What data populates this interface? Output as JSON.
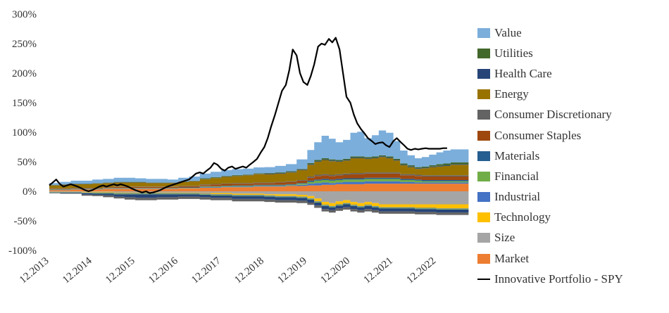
{
  "chart_data": {
    "type": "area",
    "title": "",
    "xlabel": "",
    "ylabel": "",
    "ylim": [
      -100,
      300
    ],
    "y_ticks": [
      "300%",
      "250%",
      "200%",
      "150%",
      "100%",
      "50%",
      "0%",
      "-50%",
      "-100%"
    ],
    "x_ticks": [
      "12.2013",
      "12.2014",
      "12.2015",
      "12.2016",
      "12.2017",
      "12.2018",
      "12.2019",
      "12.2020",
      "12.2021",
      "12.2022"
    ],
    "x": [
      2013.92,
      2014.17,
      2014.42,
      2014.67,
      2014.92,
      2015.17,
      2015.42,
      2015.67,
      2015.92,
      2016.17,
      2016.42,
      2016.67,
      2016.92,
      2017.17,
      2017.42,
      2017.67,
      2017.92,
      2018.17,
      2018.42,
      2018.67,
      2018.92,
      2019.17,
      2019.42,
      2019.67,
      2019.92,
      2020.08,
      2020.25,
      2020.42,
      2020.58,
      2020.75,
      2020.92,
      2021.08,
      2021.25,
      2021.42,
      2021.58,
      2021.75,
      2021.92,
      2022.08,
      2022.25,
      2022.42,
      2022.58,
      2022.75,
      2022.92,
      2023.08,
      2023.25,
      2023.42
    ],
    "grid": false,
    "legend_position": "right",
    "positive_series": [
      {
        "name": "Market",
        "color": "#ED7D31",
        "values": [
          2,
          2,
          3,
          3,
          3,
          4,
          4,
          4,
          4,
          4,
          4,
          4,
          5,
          5,
          6,
          6,
          7,
          7,
          7,
          8,
          8,
          8,
          9,
          9,
          10,
          10,
          11,
          11,
          12,
          12,
          12,
          12,
          13,
          13,
          13,
          13,
          13,
          13,
          13,
          13,
          13,
          13,
          13,
          13,
          13,
          13
        ]
      },
      {
        "name": "Industrial",
        "color": "#4472C4",
        "values": [
          0.5,
          0.5,
          0.5,
          0.5,
          0.5,
          0.5,
          0.5,
          0.5,
          0.5,
          0.5,
          0.5,
          0.5,
          0.5,
          0.5,
          1,
          1,
          1,
          1,
          1,
          1,
          1,
          1,
          1,
          2,
          3,
          4,
          4,
          3,
          3,
          4,
          4,
          4,
          4,
          4,
          4,
          4,
          4,
          3,
          3,
          2,
          2,
          2,
          2,
          2,
          2,
          2
        ]
      },
      {
        "name": "Financial",
        "color": "#70AD47",
        "values": [
          0.5,
          0.5,
          0.5,
          0.5,
          0.5,
          0.5,
          0.5,
          0.5,
          0.5,
          0.5,
          0.5,
          0.5,
          0.5,
          0.5,
          1,
          1,
          1,
          1,
          1,
          1,
          1,
          1,
          1,
          2,
          3,
          4,
          4,
          4,
          4,
          4,
          4,
          4,
          4,
          4,
          4,
          4,
          4,
          3,
          3,
          3,
          2,
          2,
          2,
          2,
          2,
          2
        ]
      },
      {
        "name": "Materials",
        "color": "#255E91",
        "values": [
          0.5,
          0.5,
          0.5,
          0.5,
          0.5,
          0.5,
          0.5,
          0.5,
          0.5,
          0.5,
          0.5,
          0.5,
          0.5,
          0.5,
          0.5,
          0.5,
          0.5,
          1,
          1,
          1,
          1,
          1,
          1,
          1,
          2,
          2,
          2,
          2,
          2,
          2,
          2,
          2,
          2,
          2,
          2,
          2,
          2,
          2,
          2,
          2,
          2,
          2,
          2,
          2,
          2,
          2
        ]
      },
      {
        "name": "Consumer Staples",
        "color": "#9E480E",
        "values": [
          1,
          1,
          1,
          1,
          1,
          1,
          2,
          2,
          2,
          2,
          2,
          2,
          2,
          2,
          2,
          3,
          3,
          3,
          3,
          3,
          3,
          4,
          4,
          4,
          5,
          6,
          6,
          6,
          6,
          6,
          7,
          7,
          7,
          7,
          7,
          7,
          7,
          6,
          6,
          6,
          6,
          6,
          6,
          6,
          6,
          6
        ]
      },
      {
        "name": "Consumer Discretionary",
        "color": "#636363",
        "values": [
          0.5,
          0.5,
          0.5,
          0.5,
          0.5,
          0.5,
          0.5,
          0.5,
          0.5,
          0.5,
          0.5,
          0.5,
          0.5,
          0.5,
          1,
          1,
          1,
          1,
          1,
          1,
          1,
          1,
          1,
          1,
          2,
          2,
          2,
          2,
          2,
          2,
          2,
          2,
          2,
          2,
          2,
          2,
          2,
          2,
          2,
          2,
          2,
          2,
          2,
          2,
          2,
          2
        ]
      },
      {
        "name": "Energy",
        "color": "#997300",
        "values": [
          5,
          6,
          6,
          6,
          7,
          7,
          7,
          7,
          7,
          6,
          6,
          6,
          7,
          8,
          9,
          10,
          11,
          12,
          13,
          14,
          14,
          14,
          15,
          17,
          20,
          22,
          24,
          23,
          21,
          22,
          25,
          25,
          23,
          24,
          26,
          24,
          20,
          15,
          12,
          10,
          12,
          14,
          15,
          16,
          18,
          18
        ]
      },
      {
        "name": "Health Care",
        "color": "#264478",
        "values": [
          0.5,
          0.5,
          0.5,
          0.5,
          0.5,
          0.5,
          0.5,
          0.5,
          0.5,
          0.5,
          0.5,
          0.5,
          0.5,
          0.5,
          0.5,
          0.5,
          0.5,
          0.5,
          0.5,
          0.5,
          1,
          1,
          1,
          1,
          1,
          1,
          1,
          1,
          1,
          1,
          1,
          1,
          1,
          1,
          1,
          1,
          1,
          1,
          1,
          1,
          1,
          1,
          1,
          1,
          1,
          1
        ]
      },
      {
        "name": "Utilities",
        "color": "#43682B",
        "values": [
          0.5,
          0.5,
          0.5,
          0.5,
          0.5,
          0.5,
          0.5,
          0.5,
          0.5,
          0.5,
          0.5,
          0.5,
          0.5,
          0.5,
          1,
          1,
          1,
          1,
          1,
          1,
          1,
          1,
          1,
          1,
          2,
          2,
          2,
          2,
          2,
          2,
          2,
          2,
          2,
          2,
          2,
          2,
          2,
          2,
          2,
          2,
          2,
          2,
          3,
          3,
          3,
          3
        ]
      },
      {
        "name": "Value",
        "color": "#7BAEDB",
        "values": [
          3,
          4,
          5,
          5,
          6,
          6,
          7,
          7,
          6,
          6,
          6,
          5,
          6,
          7,
          8,
          9,
          10,
          10,
          10,
          10,
          10,
          11,
          12,
          16,
          22,
          30,
          38,
          35,
          30,
          32,
          40,
          42,
          32,
          36,
          42,
          40,
          30,
          22,
          17,
          15,
          16,
          18,
          20,
          22,
          22,
          22
        ]
      }
    ],
    "negative_series": [
      {
        "name": "Size",
        "color": "#A5A5A5",
        "values": [
          -0.5,
          -0.5,
          -0.5,
          -1,
          -1,
          -1,
          -2,
          -2,
          -2,
          -2,
          -2,
          -2,
          -2,
          -2,
          -3,
          -3,
          -3,
          -4,
          -4,
          -4,
          -5,
          -5,
          -5,
          -6,
          -8,
          -12,
          -18,
          -20,
          -17,
          -15,
          -18,
          -20,
          -18,
          -20,
          -22,
          -22,
          -22,
          -22,
          -22,
          -22,
          -22,
          -22,
          -22,
          -22,
          -22,
          -22
        ]
      },
      {
        "name": "Technology",
        "color": "#FFC000",
        "values": [
          -0.5,
          -0.5,
          -0.5,
          -1,
          -1,
          -1,
          -1,
          -1,
          -1,
          -1,
          -1,
          -1,
          -1,
          -1,
          -1,
          -2,
          -2,
          -2,
          -2,
          -2,
          -2,
          -3,
          -3,
          -3,
          -4,
          -5,
          -5,
          -5,
          -5,
          -5,
          -5,
          -5,
          -5,
          -5,
          -5,
          -5,
          -5,
          -5,
          -5,
          -6,
          -6,
          -6,
          -7,
          -7,
          -7,
          -7
        ]
      },
      {
        "name": "Industrial",
        "color": "#4472C4",
        "values": [
          -0.5,
          -0.5,
          -0.5,
          -1,
          -1,
          -1,
          -1,
          -1,
          -1,
          -1,
          -1,
          -1,
          -1,
          -1,
          -1,
          -1,
          -1,
          -1,
          -1,
          -1,
          -1,
          -1,
          -1,
          -1,
          -1,
          -1,
          -1,
          -1,
          -1,
          -1,
          -1,
          -1,
          -1,
          -1,
          -1,
          -1,
          -1,
          -1,
          -1,
          -1,
          -1,
          -1,
          -1,
          -1,
          -1,
          -1
        ]
      },
      {
        "name": "Financial",
        "color": "#70AD47",
        "values": [
          -0.5,
          -0.5,
          -0.5,
          -0.5,
          -1,
          -1,
          -1,
          -1,
          -1,
          -1,
          -1,
          -1,
          -1,
          -1,
          -1,
          -1,
          -1,
          -1,
          -1,
          -1,
          -1,
          -1,
          -1,
          -1,
          -1,
          -1,
          -1,
          -1,
          -1,
          -1,
          -1,
          -1,
          -1,
          -1,
          -1,
          -1,
          -1,
          -1,
          -1,
          -1,
          -1,
          -1,
          -1,
          -1,
          -1,
          -1
        ]
      },
      {
        "name": "Health Care",
        "color": "#264478",
        "values": [
          -0.5,
          -1,
          -1,
          -2,
          -2,
          -3,
          -4,
          -5,
          -6,
          -6,
          -5,
          -5,
          -4,
          -4,
          -4,
          -4,
          -4,
          -5,
          -5,
          -5,
          -5,
          -5,
          -5,
          -5,
          -5,
          -5,
          -5,
          -5,
          -5,
          -5,
          -5,
          -5,
          -5,
          -5,
          -5,
          -5,
          -5,
          -5,
          -5,
          -5,
          -5,
          -5,
          -5,
          -5,
          -5,
          -5
        ]
      },
      {
        "name": "Consumer Discretionary",
        "color": "#636363",
        "values": [
          -1,
          -1,
          -1,
          -2,
          -2,
          -3,
          -3,
          -4,
          -4,
          -4,
          -4,
          -4,
          -4,
          -4,
          -4,
          -4,
          -4,
          -4,
          -4,
          -4,
          -4,
          -4,
          -4,
          -4,
          -4,
          -4,
          -4,
          -4,
          -4,
          -4,
          -4,
          -4,
          -4,
          -4,
          -4,
          -4,
          -4,
          -4,
          -4,
          -4,
          -4,
          -4,
          -4,
          -4,
          -4,
          -4
        ]
      }
    ],
    "line_series": {
      "name": "Innovative Portfolio - SPY",
      "color": "#000000",
      "x": [
        2013.92,
        2014.0,
        2014.08,
        2014.17,
        2014.25,
        2014.33,
        2014.42,
        2014.5,
        2014.58,
        2014.67,
        2014.75,
        2014.83,
        2014.92,
        2015.0,
        2015.08,
        2015.17,
        2015.25,
        2015.33,
        2015.42,
        2015.5,
        2015.58,
        2015.67,
        2015.75,
        2015.83,
        2015.92,
        2016.0,
        2016.08,
        2016.17,
        2016.25,
        2016.33,
        2016.42,
        2016.5,
        2016.58,
        2016.67,
        2016.75,
        2016.83,
        2016.92,
        2017.0,
        2017.08,
        2017.17,
        2017.25,
        2017.33,
        2017.42,
        2017.5,
        2017.58,
        2017.67,
        2017.75,
        2017.83,
        2017.92,
        2018.0,
        2018.08,
        2018.17,
        2018.25,
        2018.33,
        2018.42,
        2018.5,
        2018.58,
        2018.67,
        2018.75,
        2018.83,
        2018.92,
        2019.0,
        2019.08,
        2019.17,
        2019.25,
        2019.33,
        2019.42,
        2019.5,
        2019.58,
        2019.67,
        2019.75,
        2019.83,
        2019.92,
        2020.0,
        2020.08,
        2020.17,
        2020.25,
        2020.33,
        2020.42,
        2020.5,
        2020.58,
        2020.67,
        2020.75,
        2020.83,
        2020.92,
        2021.0,
        2021.08,
        2021.17,
        2021.25,
        2021.33,
        2021.42,
        2021.5,
        2021.58,
        2021.67,
        2021.75,
        2021.83,
        2021.92,
        2022.0,
        2022.08,
        2022.17,
        2022.25,
        2022.33,
        2022.42,
        2022.5,
        2022.58,
        2022.67,
        2022.75,
        2022.83,
        2022.92,
        2023.0,
        2023.08,
        2023.17
      ],
      "values": [
        10,
        15,
        20,
        12,
        8,
        10,
        12,
        10,
        8,
        5,
        2,
        0,
        2,
        5,
        8,
        10,
        8,
        10,
        12,
        10,
        12,
        10,
        8,
        5,
        2,
        0,
        -2,
        0,
        -3,
        -2,
        0,
        2,
        5,
        8,
        10,
        12,
        14,
        16,
        18,
        20,
        25,
        30,
        32,
        30,
        35,
        40,
        48,
        45,
        38,
        35,
        40,
        42,
        38,
        40,
        42,
        40,
        45,
        50,
        55,
        65,
        75,
        90,
        110,
        130,
        150,
        170,
        180,
        205,
        240,
        230,
        200,
        185,
        180,
        195,
        215,
        245,
        250,
        248,
        258,
        252,
        260,
        240,
        200,
        160,
        150,
        130,
        115,
        105,
        98,
        90,
        85,
        80,
        82,
        83,
        78,
        75,
        85,
        90,
        84,
        78,
        72,
        70,
        72,
        71,
        72,
        73,
        72,
        72,
        72,
        72,
        73,
        73
      ]
    }
  }
}
